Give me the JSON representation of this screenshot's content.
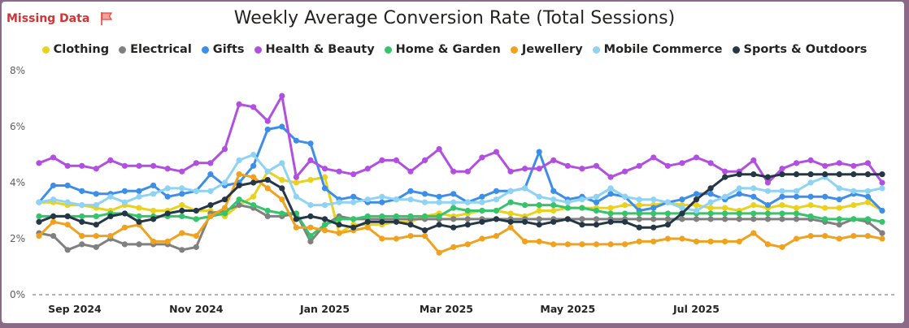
{
  "header": {
    "missing_label": "Missing Data",
    "flag_icon": "flag-icon",
    "flag_color": "#e8463c"
  },
  "chart_data": {
    "type": "line",
    "title": "Weekly Average Conversion Rate (Total Sessions)",
    "xlabel": "",
    "ylabel": "",
    "ylim": [
      0,
      8
    ],
    "y_ticks": [
      "0%",
      "2%",
      "4%",
      "6%",
      "8%"
    ],
    "x_ticks": [
      "Sep 2024",
      "Nov 2024",
      "Jan 2025",
      "Mar 2025",
      "May 2025",
      "Jul 2025"
    ],
    "legend_position": "top-center",
    "grid": true,
    "series": [
      {
        "name": "Clothing",
        "color": "#e9d21e",
        "values": [
          3.3,
          3.3,
          3.2,
          3.2,
          3.1,
          3.0,
          3.2,
          3.1,
          3.0,
          3.0,
          3.2,
          3.0,
          3.0,
          2.8,
          3.2,
          3.5,
          4.4,
          4.1,
          4.0,
          4.1,
          4.2,
          2.2,
          2.5,
          2.5,
          2.5,
          2.6,
          2.6,
          2.8,
          2.9,
          2.8,
          2.9,
          3.0,
          3.0,
          2.9,
          2.8,
          3.0,
          3.0,
          3.1,
          3.1,
          3.1,
          3.1,
          3.2,
          3.2,
          3.2,
          3.3,
          3.2,
          3.2,
          3.1,
          3.1,
          3.0,
          3.2,
          3.1,
          3.2,
          3.1,
          3.2,
          3.1,
          3.1,
          3.2,
          3.3,
          3.0
        ]
      },
      {
        "name": "Electrical",
        "color": "#808080",
        "values": [
          2.2,
          2.1,
          1.6,
          1.8,
          1.7,
          2.0,
          1.8,
          1.8,
          1.8,
          1.8,
          1.6,
          1.7,
          2.9,
          3.0,
          3.2,
          3.1,
          2.8,
          2.8,
          2.9,
          1.9,
          2.5,
          2.8,
          2.7,
          2.7,
          2.7,
          2.7,
          2.7,
          2.7,
          2.7,
          2.7,
          2.7,
          2.7,
          2.7,
          2.7,
          2.7,
          2.7,
          2.7,
          2.7,
          2.7,
          2.7,
          2.7,
          2.7,
          2.7,
          2.7,
          2.7,
          2.7,
          2.7,
          2.7,
          2.7,
          2.7,
          2.7,
          2.7,
          2.7,
          2.7,
          2.7,
          2.6,
          2.5,
          2.7,
          2.6,
          2.2
        ]
      },
      {
        "name": "Gifts",
        "color": "#3c8ee8",
        "values": [
          3.3,
          3.9,
          3.9,
          3.7,
          3.6,
          3.6,
          3.7,
          3.7,
          3.9,
          3.5,
          3.6,
          3.7,
          4.3,
          3.9,
          4.0,
          4.6,
          5.9,
          6.0,
          5.5,
          5.4,
          3.8,
          3.4,
          3.5,
          3.3,
          3.3,
          3.4,
          3.7,
          3.6,
          3.5,
          3.6,
          3.3,
          3.5,
          3.7,
          3.7,
          3.8,
          5.1,
          3.7,
          3.4,
          3.5,
          3.3,
          3.6,
          3.5,
          3.0,
          3.1,
          3.3,
          3.4,
          3.6,
          3.6,
          3.4,
          3.6,
          3.5,
          3.2,
          3.5,
          3.5,
          3.5,
          3.5,
          3.4,
          3.6,
          3.5,
          3.0
        ]
      },
      {
        "name": "Health & Beauty",
        "color": "#b14fe0",
        "values": [
          4.7,
          4.9,
          4.6,
          4.6,
          4.5,
          4.8,
          4.6,
          4.6,
          4.6,
          4.5,
          4.4,
          4.7,
          4.7,
          5.2,
          6.8,
          6.7,
          6.2,
          7.1,
          4.2,
          4.8,
          4.5,
          4.4,
          4.3,
          4.5,
          4.8,
          4.8,
          4.4,
          4.8,
          5.2,
          4.4,
          4.4,
          4.9,
          5.1,
          4.4,
          4.5,
          4.5,
          4.8,
          4.6,
          4.5,
          4.6,
          4.2,
          4.4,
          4.6,
          4.9,
          4.6,
          4.7,
          4.9,
          4.7,
          4.4,
          4.4,
          4.8,
          4.0,
          4.5,
          4.7,
          4.8,
          4.6,
          4.7,
          4.6,
          4.7,
          4.0
        ]
      },
      {
        "name": "Home & Garden",
        "color": "#35c46a",
        "values": [
          2.8,
          2.8,
          2.8,
          2.8,
          2.8,
          2.9,
          2.9,
          2.8,
          2.8,
          2.8,
          2.8,
          2.7,
          2.8,
          2.9,
          3.4,
          3.2,
          3.0,
          2.9,
          2.9,
          2.1,
          2.5,
          2.7,
          2.7,
          2.8,
          2.8,
          2.8,
          2.8,
          2.8,
          2.8,
          3.1,
          3.0,
          3.0,
          3.0,
          3.3,
          3.2,
          3.2,
          3.2,
          3.1,
          3.1,
          3.0,
          2.9,
          2.9,
          2.9,
          2.9,
          2.9,
          2.9,
          2.9,
          2.9,
          2.9,
          2.9,
          2.9,
          2.9,
          2.9,
          2.9,
          2.8,
          2.7,
          2.7,
          2.7,
          2.7,
          2.6
        ]
      },
      {
        "name": "Jewellery",
        "color": "#f0a21e",
        "values": [
          2.1,
          2.6,
          2.5,
          2.1,
          2.1,
          2.1,
          2.4,
          2.5,
          1.9,
          1.9,
          2.2,
          2.1,
          2.8,
          3.1,
          4.3,
          4.2,
          3.8,
          3.4,
          2.4,
          2.4,
          2.3,
          2.2,
          2.3,
          2.4,
          2.0,
          2.0,
          2.1,
          2.1,
          1.5,
          1.7,
          1.8,
          2.0,
          2.1,
          2.4,
          1.9,
          1.9,
          1.8,
          1.8,
          1.8,
          1.8,
          1.8,
          1.8,
          1.9,
          1.9,
          2.0,
          2.0,
          1.9,
          1.9,
          1.9,
          1.9,
          2.2,
          1.8,
          1.7,
          2.0,
          2.1,
          2.1,
          2.0,
          2.1,
          2.1,
          2.0
        ]
      },
      {
        "name": "Mobile Commerce",
        "color": "#8fd3f4",
        "values": [
          3.3,
          3.4,
          3.3,
          3.2,
          3.2,
          3.5,
          3.3,
          3.5,
          3.6,
          3.8,
          3.8,
          3.7,
          3.7,
          4.0,
          4.8,
          5.0,
          4.4,
          4.7,
          3.5,
          3.2,
          3.2,
          3.3,
          3.3,
          3.4,
          3.5,
          3.4,
          3.4,
          3.3,
          3.3,
          3.3,
          3.3,
          3.3,
          3.4,
          3.7,
          3.8,
          3.5,
          3.4,
          3.3,
          3.4,
          3.5,
          3.8,
          3.5,
          3.4,
          3.4,
          3.3,
          3.1,
          3.0,
          3.3,
          3.5,
          3.8,
          3.8,
          3.7,
          3.7,
          3.7,
          4.0,
          4.2,
          3.8,
          3.7,
          3.7,
          3.8
        ]
      },
      {
        "name": "Sports & Outdoors",
        "color": "#253746",
        "values": [
          2.6,
          2.8,
          2.8,
          2.6,
          2.5,
          2.8,
          2.9,
          2.6,
          2.7,
          2.9,
          3.0,
          3.0,
          3.2,
          3.4,
          3.9,
          4.0,
          4.1,
          3.8,
          2.7,
          2.8,
          2.7,
          2.5,
          2.4,
          2.6,
          2.6,
          2.6,
          2.5,
          2.3,
          2.5,
          2.4,
          2.5,
          2.6,
          2.7,
          2.6,
          2.6,
          2.5,
          2.6,
          2.7,
          2.5,
          2.5,
          2.6,
          2.6,
          2.4,
          2.4,
          2.5,
          2.9,
          3.4,
          3.8,
          4.2,
          4.3,
          4.3,
          4.2,
          4.3,
          4.3,
          4.3,
          4.3,
          4.3,
          4.3,
          4.3,
          4.3
        ]
      }
    ]
  }
}
